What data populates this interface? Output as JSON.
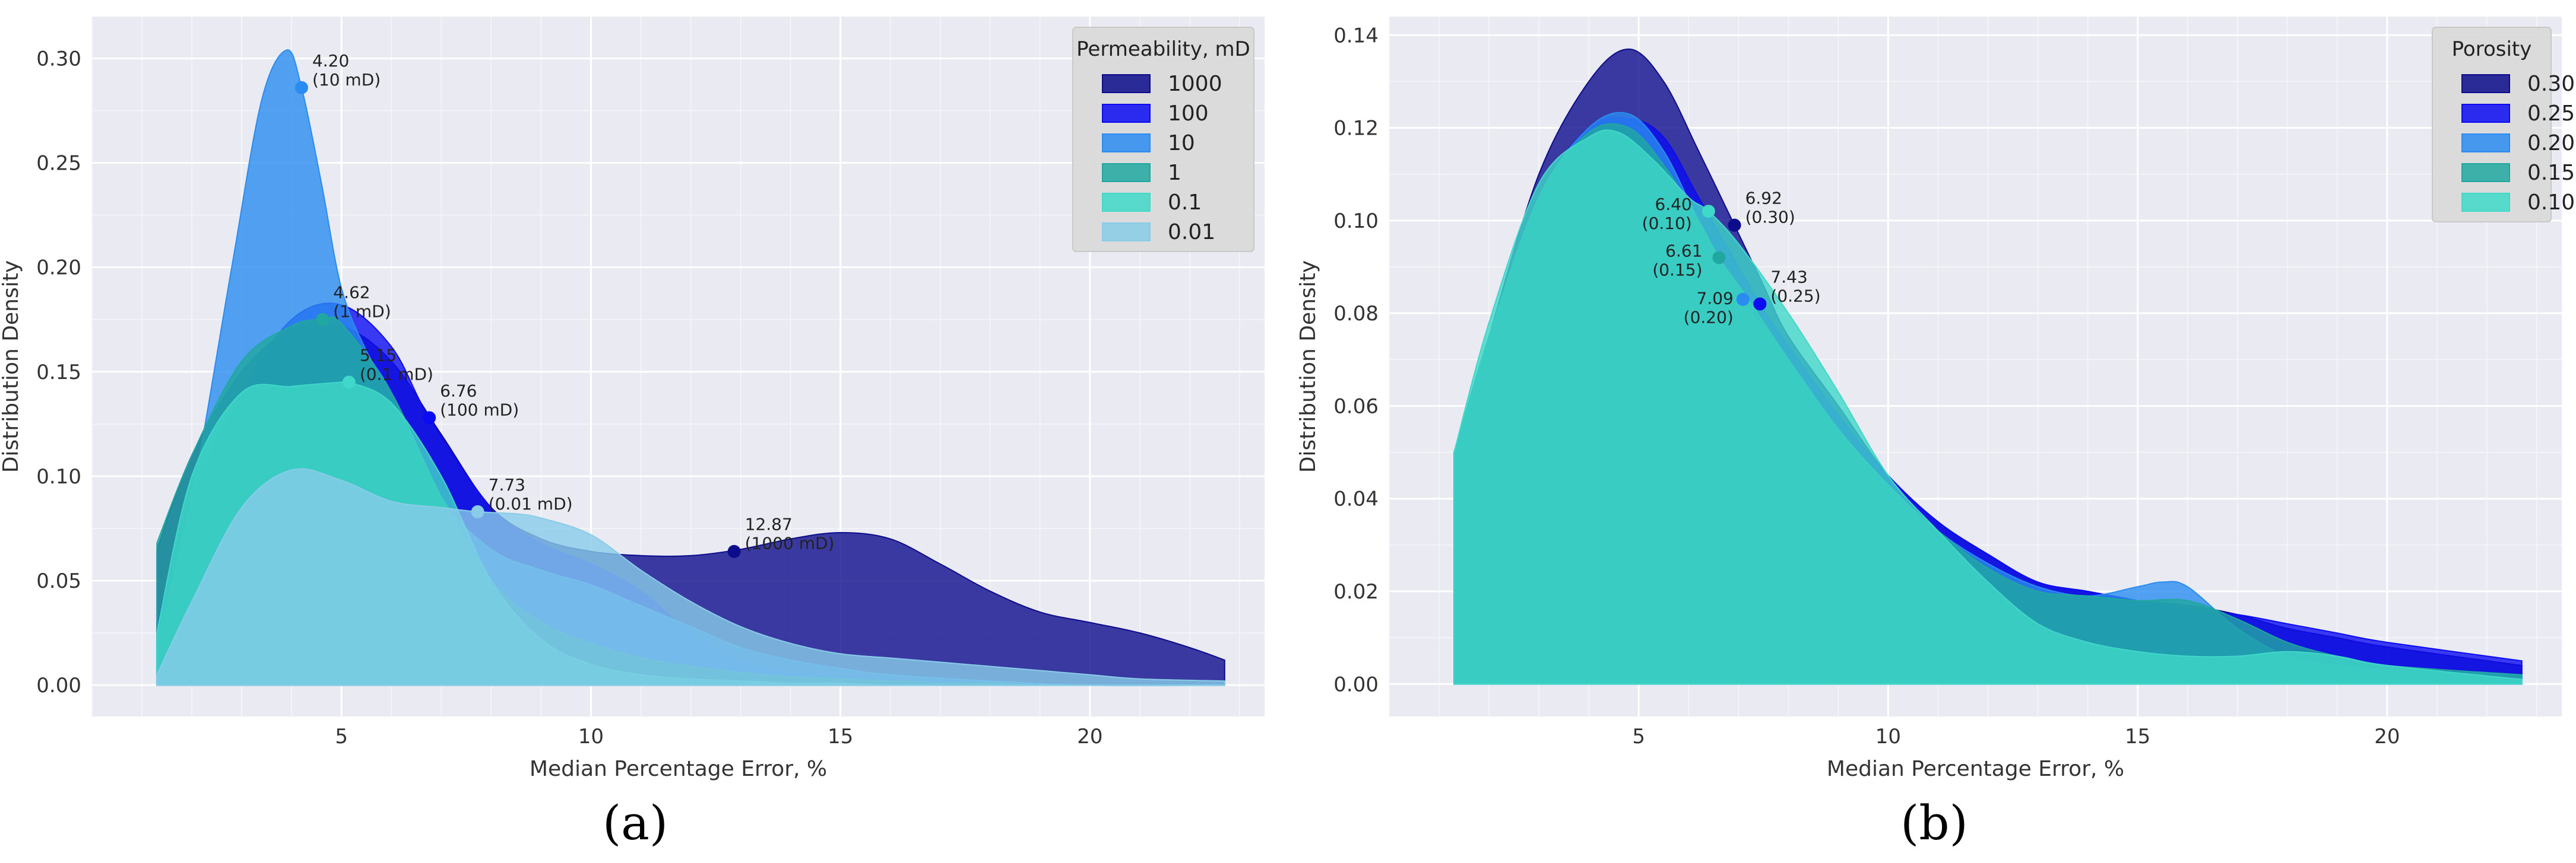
{
  "chart_data": [
    {
      "panel": "(a)",
      "type": "area",
      "xlabel": "Median Percentage Error, %",
      "ylabel": "Distribution Density",
      "xlim": [
        0,
        23.5
      ],
      "ylim": [
        -0.015,
        0.32
      ],
      "xticks": [
        5,
        10,
        15,
        20
      ],
      "xtick_labels": [
        "5",
        "10",
        "15",
        "20"
      ],
      "yticks": [
        0.0,
        0.05,
        0.1,
        0.15,
        0.2,
        0.25,
        0.3
      ],
      "ytick_labels": [
        "0.00",
        "0.05",
        "0.10",
        "0.15",
        "0.20",
        "0.25",
        "0.30"
      ],
      "legend": {
        "title": "Permeability, mD",
        "position": "top-right"
      },
      "series": [
        {
          "name": "1000",
          "color": "#0c0c8c",
          "x": [
            1.3,
            2,
            3,
            4,
            5,
            6,
            7,
            8,
            9,
            10,
            11,
            12,
            13,
            14,
            15,
            16,
            17,
            18,
            19,
            20,
            21,
            22,
            22.7
          ],
          "y": [
            0.065,
            0.11,
            0.15,
            0.17,
            0.172,
            0.155,
            0.12,
            0.085,
            0.07,
            0.064,
            0.062,
            0.062,
            0.065,
            0.07,
            0.073,
            0.07,
            0.058,
            0.045,
            0.035,
            0.03,
            0.025,
            0.018,
            0.012
          ]
        },
        {
          "name": "100",
          "color": "#0c0cf2",
          "x": [
            1.3,
            2,
            3,
            4,
            5,
            6,
            6.76,
            8,
            9,
            10,
            11,
            12,
            13,
            14,
            15,
            16,
            17,
            18,
            19,
            20,
            21,
            22,
            22.7
          ],
          "y": [
            0.03,
            0.09,
            0.14,
            0.175,
            0.182,
            0.162,
            0.128,
            0.085,
            0.068,
            0.058,
            0.045,
            0.025,
            0.012,
            0.006,
            0.004,
            0.002,
            0.001,
            0.0,
            0.0,
            0.0,
            0.0,
            0.0,
            0.0
          ]
        },
        {
          "name": "10",
          "color": "#2a8cf0",
          "x": [
            1.3,
            2,
            2.8,
            3.4,
            3.9,
            4.2,
            4.6,
            5,
            5.5,
            6,
            7,
            8,
            9,
            10,
            11,
            12,
            13,
            14,
            15,
            16,
            18,
            20,
            22.7
          ],
          "y": [
            0.02,
            0.09,
            0.2,
            0.28,
            0.304,
            0.286,
            0.24,
            0.19,
            0.16,
            0.14,
            0.09,
            0.065,
            0.055,
            0.048,
            0.038,
            0.028,
            0.018,
            0.012,
            0.008,
            0.005,
            0.002,
            0.0,
            0.0
          ]
        },
        {
          "name": "1",
          "color": "#20a8a0",
          "x": [
            1.3,
            2,
            3,
            4,
            4.62,
            5,
            6,
            7,
            8,
            9,
            10,
            11,
            12,
            13,
            14,
            15,
            16,
            17,
            18,
            19,
            20,
            21,
            22.7
          ],
          "y": [
            0.068,
            0.11,
            0.155,
            0.172,
            0.175,
            0.173,
            0.14,
            0.09,
            0.05,
            0.03,
            0.02,
            0.013,
            0.009,
            0.006,
            0.004,
            0.003,
            0.002,
            0.001,
            0.001,
            0.0,
            0.0,
            0.0,
            0.0
          ]
        },
        {
          "name": "0.1",
          "color": "#40d8c8",
          "x": [
            1.3,
            2,
            3,
            4,
            5,
            5.15,
            6,
            7,
            8,
            9,
            10,
            11,
            12,
            13,
            14,
            15,
            16,
            17,
            18,
            19,
            20,
            21,
            22.7
          ],
          "y": [
            0.025,
            0.1,
            0.14,
            0.143,
            0.145,
            0.145,
            0.135,
            0.1,
            0.05,
            0.022,
            0.01,
            0.005,
            0.003,
            0.002,
            0.001,
            0.001,
            0.0,
            0.0,
            0.0,
            0.0,
            0.0,
            0.0,
            0.0
          ]
        },
        {
          "name": "0.01",
          "color": "#88cce8",
          "x": [
            1.3,
            2,
            3,
            4,
            5,
            6,
            7,
            7.73,
            8.5,
            9,
            10,
            11,
            12,
            13,
            14,
            15,
            16,
            17,
            18,
            19,
            20,
            21,
            22.7
          ],
          "y": [
            0.005,
            0.04,
            0.085,
            0.103,
            0.098,
            0.088,
            0.085,
            0.083,
            0.082,
            0.08,
            0.072,
            0.055,
            0.04,
            0.028,
            0.02,
            0.015,
            0.013,
            0.011,
            0.009,
            0.007,
            0.005,
            0.003,
            0.002
          ]
        }
      ],
      "annotations": [
        {
          "x": 4.2,
          "y": 0.286,
          "color": "#2a8cf0",
          "text": [
            "4.20",
            "(10 mD)"
          ]
        },
        {
          "x": 4.62,
          "y": 0.175,
          "color": "#20a8a0",
          "text": [
            "4.62",
            "(1 mD)"
          ]
        },
        {
          "x": 5.15,
          "y": 0.145,
          "color": "#40d8c8",
          "text": [
            "5.15",
            "(0.1 mD)"
          ]
        },
        {
          "x": 6.76,
          "y": 0.128,
          "color": "#0c0cf2",
          "text": [
            "6.76",
            "(100 mD)"
          ]
        },
        {
          "x": 7.73,
          "y": 0.083,
          "color": "#88cce8",
          "text": [
            "7.73",
            "(0.01 mD)"
          ]
        },
        {
          "x": 12.87,
          "y": 0.064,
          "color": "#0c0c8c",
          "text": [
            "12.87",
            "(1000 mD)"
          ]
        }
      ]
    },
    {
      "panel": "(b)",
      "type": "area",
      "xlabel": "Median Percentage Error, %",
      "ylabel": "Distribution Density",
      "xlim": [
        0,
        23.5
      ],
      "ylim": [
        -0.007,
        0.144
      ],
      "xticks": [
        5,
        10,
        15,
        20
      ],
      "xtick_labels": [
        "5",
        "10",
        "15",
        "20"
      ],
      "yticks": [
        0.0,
        0.02,
        0.04,
        0.06,
        0.08,
        0.1,
        0.12,
        0.14
      ],
      "ytick_labels": [
        "0.00",
        "0.02",
        "0.04",
        "0.06",
        "0.08",
        "0.10",
        "0.12",
        "0.14"
      ],
      "legend": {
        "title": "Porosity",
        "position": "top-right"
      },
      "series": [
        {
          "name": "0.30",
          "color": "#0c0c8c",
          "x": [
            1.3,
            2,
            3,
            4,
            4.8,
            5.5,
            6.2,
            6.92,
            7.5,
            8,
            9,
            10,
            11,
            12,
            13,
            14,
            15,
            16,
            17,
            18,
            19,
            20,
            22.7
          ],
          "y": [
            0.05,
            0.075,
            0.11,
            0.13,
            0.137,
            0.13,
            0.115,
            0.099,
            0.086,
            0.075,
            0.06,
            0.045,
            0.035,
            0.028,
            0.022,
            0.02,
            0.018,
            0.017,
            0.015,
            0.012,
            0.01,
            0.008,
            0.004
          ]
        },
        {
          "name": "0.25",
          "color": "#0c0cf2",
          "x": [
            1.3,
            2,
            3,
            4,
            4.8,
            5.5,
            6.2,
            7,
            7.43,
            8,
            9,
            10,
            11,
            12,
            13,
            14,
            15,
            16,
            17,
            18,
            19,
            20,
            22.7
          ],
          "y": [
            0.05,
            0.075,
            0.105,
            0.12,
            0.122,
            0.118,
            0.105,
            0.09,
            0.082,
            0.073,
            0.058,
            0.045,
            0.035,
            0.028,
            0.022,
            0.02,
            0.018,
            0.016,
            0.015,
            0.013,
            0.011,
            0.009,
            0.005
          ]
        },
        {
          "name": "0.20",
          "color": "#2a8cf0",
          "x": [
            1.3,
            2,
            3,
            4,
            4.8,
            5.5,
            6.2,
            7.09,
            8,
            9,
            10,
            11,
            12,
            13,
            14,
            15,
            15.5,
            16,
            17,
            18,
            19,
            20,
            22.7
          ],
          "y": [
            0.05,
            0.075,
            0.105,
            0.12,
            0.123,
            0.115,
            0.1,
            0.083,
            0.07,
            0.055,
            0.043,
            0.033,
            0.026,
            0.021,
            0.019,
            0.021,
            0.022,
            0.021,
            0.012,
            0.006,
            0.004,
            0.003,
            0.002
          ]
        },
        {
          "name": "0.15",
          "color": "#20a8a0",
          "x": [
            1.3,
            2,
            3,
            4,
            4.8,
            5.5,
            6.2,
            6.61,
            7.2,
            8,
            9,
            10,
            11,
            12,
            13,
            14,
            15,
            16,
            17,
            18,
            19,
            20,
            22.7
          ],
          "y": [
            0.05,
            0.075,
            0.105,
            0.119,
            0.12,
            0.112,
            0.1,
            0.092,
            0.083,
            0.07,
            0.055,
            0.043,
            0.033,
            0.025,
            0.02,
            0.019,
            0.018,
            0.018,
            0.014,
            0.009,
            0.006,
            0.004,
            0.002
          ]
        },
        {
          "name": "0.10",
          "color": "#40d8c8",
          "x": [
            1.3,
            2,
            3,
            4,
            4.6,
            5.3,
            6,
            6.4,
            7,
            8,
            9,
            10,
            11,
            12,
            13,
            14,
            15,
            16,
            17,
            18,
            19,
            20,
            22.7
          ],
          "y": [
            0.05,
            0.078,
            0.108,
            0.118,
            0.119,
            0.113,
            0.105,
            0.102,
            0.095,
            0.08,
            0.063,
            0.045,
            0.033,
            0.022,
            0.013,
            0.009,
            0.007,
            0.006,
            0.006,
            0.007,
            0.006,
            0.004,
            0.001
          ]
        }
      ],
      "annotations": [
        {
          "x": 6.4,
          "y": 0.102,
          "color": "#40d8c8",
          "text": [
            "6.40",
            "(0.10)"
          ],
          "side": "left"
        },
        {
          "x": 6.61,
          "y": 0.092,
          "color": "#20a8a0",
          "text": [
            "6.61",
            "(0.15)"
          ],
          "side": "left"
        },
        {
          "x": 7.09,
          "y": 0.083,
          "color": "#2a8cf0",
          "text": [
            "7.09",
            "(0.20)"
          ],
          "side": "left-below"
        },
        {
          "x": 6.92,
          "y": 0.099,
          "color": "#0c0c8c",
          "text": [
            "6.92",
            "(0.30)"
          ],
          "side": "right"
        },
        {
          "x": 7.43,
          "y": 0.082,
          "color": "#0c0cf2",
          "text": [
            "7.43",
            "(0.25)"
          ],
          "side": "right"
        }
      ]
    }
  ]
}
